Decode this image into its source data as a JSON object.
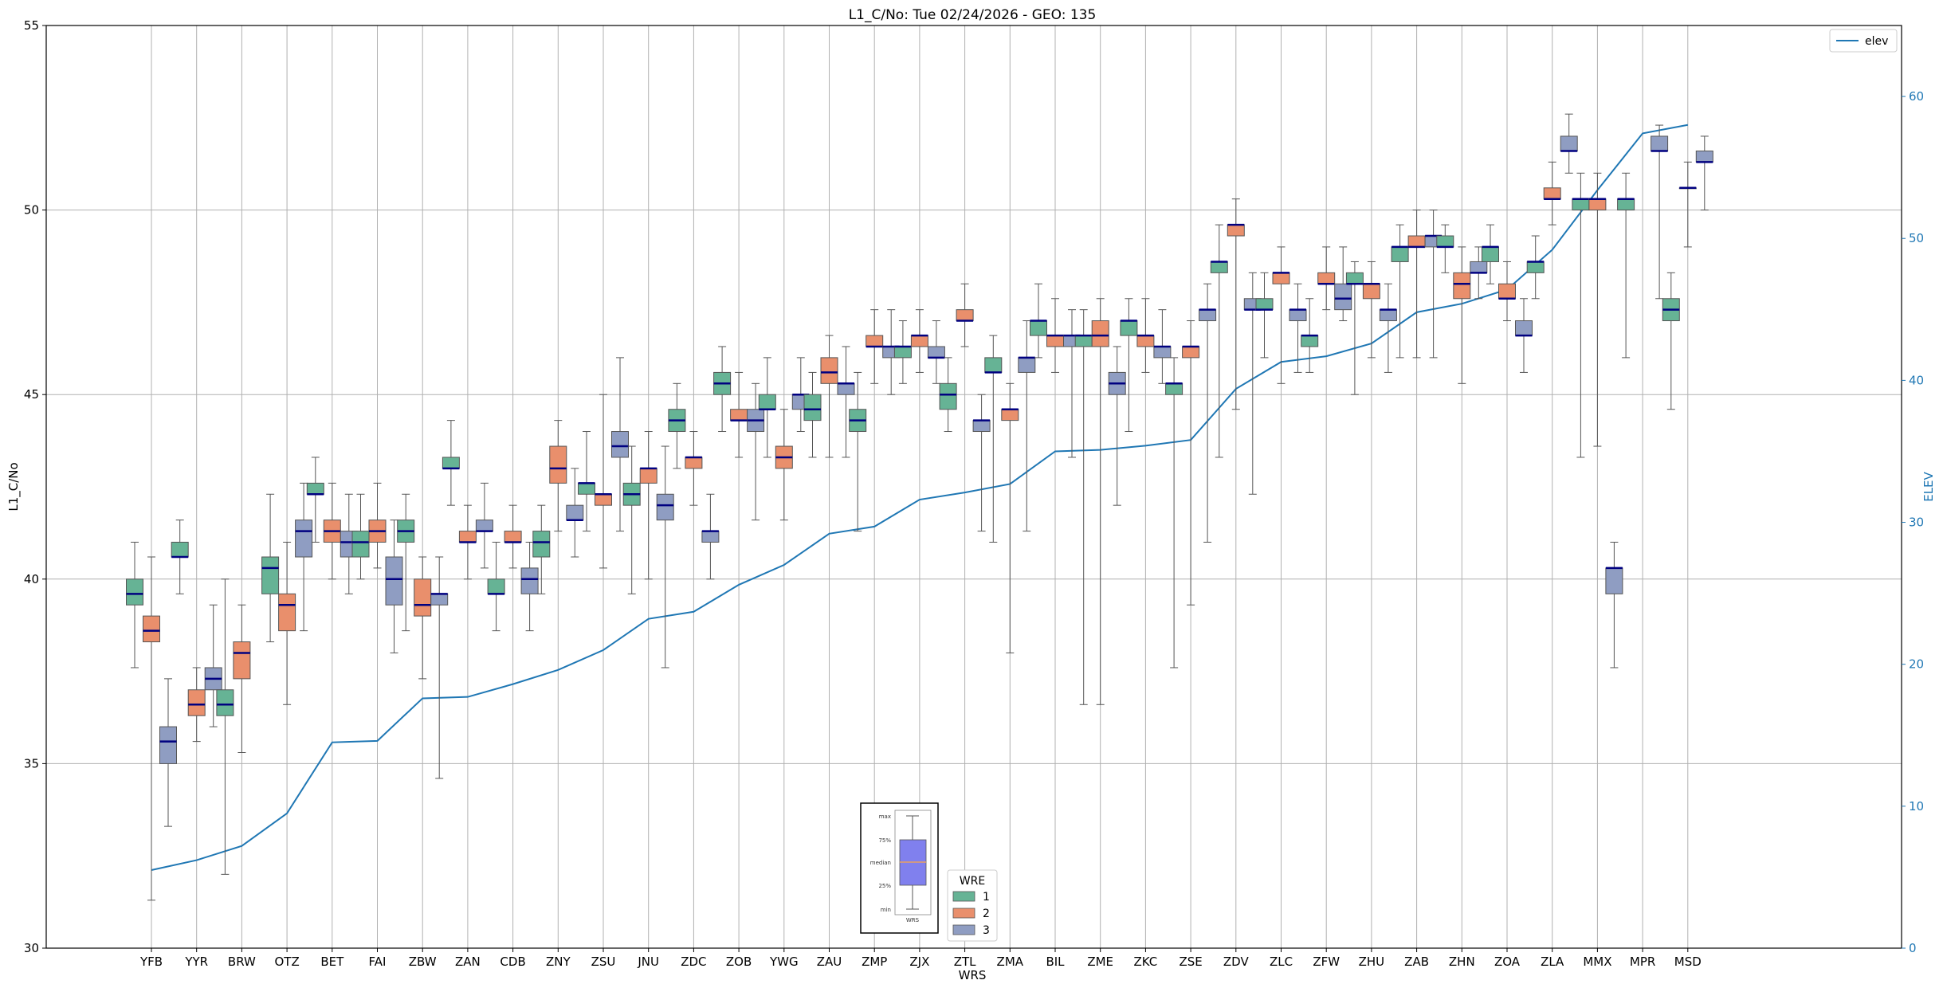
{
  "chart_data": {
    "type": "box",
    "title": "L1_C/No: Tue 02/24/2026 - GEO: 135",
    "xlabel": "WRS",
    "ylabel": "L1_C/No",
    "y2label": "ELEV",
    "ylim": [
      30,
      55
    ],
    "y2lim": [
      0,
      65
    ],
    "yticks": [
      30,
      35,
      40,
      45,
      50,
      55
    ],
    "y2ticks": [
      0,
      10,
      20,
      30,
      40,
      50,
      60
    ],
    "grid": true,
    "categories": [
      "YFB",
      "YYR",
      "BRW",
      "OTZ",
      "BET",
      "FAI",
      "ZBW",
      "ZAN",
      "CDB",
      "ZNY",
      "ZSU",
      "JNU",
      "ZDC",
      "ZOB",
      "YWG",
      "ZAU",
      "ZMP",
      "ZJX",
      "ZTL",
      "ZMA",
      "BIL",
      "ZME",
      "ZKC",
      "ZSE",
      "ZDV",
      "ZLC",
      "ZFW",
      "ZHU",
      "ZAB",
      "ZHN",
      "ZOA",
      "ZLA",
      "MMX",
      "MPR",
      "MSD"
    ],
    "wre_colors": {
      "1": "#66b395",
      "2": "#e98f6c",
      "3": "#8f9dc2"
    },
    "legend": {
      "elev_label": "elev",
      "elev_color": "#1f77b4",
      "wre_title": "WRE",
      "wre_items": [
        {
          "name": "1",
          "color": "#66b395"
        },
        {
          "name": "2",
          "color": "#e98f6c"
        },
        {
          "name": "3",
          "color": "#8f9dc2"
        }
      ]
    },
    "box_key": {
      "labels": [
        "max",
        "75%",
        "median",
        "25%",
        "min"
      ],
      "xlabel": "WRS",
      "fill": "#8080ee",
      "median_color": "#e9a060"
    },
    "elev": [
      5.5,
      6.2,
      7.2,
      9.5,
      14.5,
      14.6,
      17.6,
      17.7,
      18.6,
      19.6,
      21.0,
      23.2,
      23.7,
      25.6,
      27.0,
      29.2,
      29.7,
      31.6,
      32.1,
      32.7,
      35.0,
      35.1,
      35.4,
      35.8,
      39.4,
      41.3,
      41.7,
      42.6,
      44.8,
      45.4,
      46.4,
      49.2,
      53.4,
      57.4,
      58.0
    ],
    "boxes": [
      {
        "cat": "YFB",
        "wre": 1,
        "min": 37.6,
        "q1": 39.3,
        "median": 39.6,
        "q3": 40.0,
        "max": 41.0
      },
      {
        "cat": "YFB",
        "wre": 2,
        "min": 31.3,
        "q1": 38.3,
        "median": 38.6,
        "q3": 39.0,
        "max": 40.6
      },
      {
        "cat": "YFB",
        "wre": 3,
        "min": 33.3,
        "q1": 35.0,
        "median": 35.6,
        "q3": 36.0,
        "max": 37.3
      },
      {
        "cat": "YYR",
        "wre": 1,
        "min": 39.6,
        "q1": 40.6,
        "median": 40.6,
        "q3": 41.0,
        "max": 41.6
      },
      {
        "cat": "YYR",
        "wre": 2,
        "min": 35.6,
        "q1": 36.3,
        "median": 36.6,
        "q3": 37.0,
        "max": 37.6
      },
      {
        "cat": "YYR",
        "wre": 3,
        "min": 36.0,
        "q1": 37.0,
        "median": 37.3,
        "q3": 37.6,
        "max": 39.3
      },
      {
        "cat": "BRW",
        "wre": 1,
        "min": 32.0,
        "q1": 36.3,
        "median": 36.6,
        "q3": 37.0,
        "max": 40.0
      },
      {
        "cat": "BRW",
        "wre": 2,
        "min": 35.3,
        "q1": 37.3,
        "median": 38.0,
        "q3": 38.3,
        "max": 39.3
      },
      {
        "cat": "OTZ",
        "wre": 1,
        "min": 38.3,
        "q1": 39.6,
        "median": 40.3,
        "q3": 40.6,
        "max": 42.3
      },
      {
        "cat": "OTZ",
        "wre": 2,
        "min": 36.6,
        "q1": 38.6,
        "median": 39.3,
        "q3": 39.6,
        "max": 41.0
      },
      {
        "cat": "OTZ",
        "wre": 3,
        "min": 38.6,
        "q1": 40.6,
        "median": 41.3,
        "q3": 41.6,
        "max": 42.6
      },
      {
        "cat": "BET",
        "wre": 1,
        "min": 41.0,
        "q1": 42.3,
        "median": 42.3,
        "q3": 42.6,
        "max": 43.3
      },
      {
        "cat": "BET",
        "wre": 2,
        "min": 40.0,
        "q1": 41.0,
        "median": 41.3,
        "q3": 41.6,
        "max": 42.6
      },
      {
        "cat": "BET",
        "wre": 3,
        "min": 39.6,
        "q1": 40.6,
        "median": 41.0,
        "q3": 41.3,
        "max": 42.3
      },
      {
        "cat": "FAI",
        "wre": 1,
        "min": 40.0,
        "q1": 40.6,
        "median": 41.0,
        "q3": 41.3,
        "max": 42.3
      },
      {
        "cat": "FAI",
        "wre": 2,
        "min": 40.3,
        "q1": 41.0,
        "median": 41.3,
        "q3": 41.6,
        "max": 42.6
      },
      {
        "cat": "FAI",
        "wre": 3,
        "min": 38.0,
        "q1": 39.3,
        "median": 40.0,
        "q3": 40.6,
        "max": 41.6
      },
      {
        "cat": "ZBW",
        "wre": 1,
        "min": 38.6,
        "q1": 41.0,
        "median": 41.3,
        "q3": 41.6,
        "max": 42.3
      },
      {
        "cat": "ZBW",
        "wre": 2,
        "min": 37.3,
        "q1": 39.0,
        "median": 39.3,
        "q3": 40.0,
        "max": 40.6
      },
      {
        "cat": "ZBW",
        "wre": 3,
        "min": 34.6,
        "q1": 39.3,
        "median": 39.6,
        "q3": 39.6,
        "max": 40.6
      },
      {
        "cat": "ZAN",
        "wre": 1,
        "min": 42.0,
        "q1": 43.0,
        "median": 43.0,
        "q3": 43.3,
        "max": 44.3
      },
      {
        "cat": "ZAN",
        "wre": 2,
        "min": 40.0,
        "q1": 41.0,
        "median": 41.0,
        "q3": 41.3,
        "max": 42.0
      },
      {
        "cat": "ZAN",
        "wre": 3,
        "min": 40.3,
        "q1": 41.3,
        "median": 41.3,
        "q3": 41.6,
        "max": 42.6
      },
      {
        "cat": "CDB",
        "wre": 1,
        "min": 38.6,
        "q1": 39.6,
        "median": 39.6,
        "q3": 40.0,
        "max": 41.0
      },
      {
        "cat": "CDB",
        "wre": 2,
        "min": 40.3,
        "q1": 41.0,
        "median": 41.0,
        "q3": 41.3,
        "max": 42.0
      },
      {
        "cat": "CDB",
        "wre": 3,
        "min": 38.6,
        "q1": 39.6,
        "median": 40.0,
        "q3": 40.3,
        "max": 41.0
      },
      {
        "cat": "ZNY",
        "wre": 1,
        "min": 39.6,
        "q1": 40.6,
        "median": 41.0,
        "q3": 41.3,
        "max": 42.0
      },
      {
        "cat": "ZNY",
        "wre": 2,
        "min": 41.3,
        "q1": 42.6,
        "median": 43.0,
        "q3": 43.6,
        "max": 44.3
      },
      {
        "cat": "ZNY",
        "wre": 3,
        "min": 40.6,
        "q1": 41.6,
        "median": 41.6,
        "q3": 42.0,
        "max": 43.0
      },
      {
        "cat": "ZSU",
        "wre": 1,
        "min": 41.3,
        "q1": 42.3,
        "median": 42.6,
        "q3": 42.6,
        "max": 44.0
      },
      {
        "cat": "ZSU",
        "wre": 2,
        "min": 40.3,
        "q1": 42.0,
        "median": 42.3,
        "q3": 42.3,
        "max": 45.0
      },
      {
        "cat": "ZSU",
        "wre": 3,
        "min": 41.3,
        "q1": 43.3,
        "median": 43.6,
        "q3": 44.0,
        "max": 46.0
      },
      {
        "cat": "JNU",
        "wre": 1,
        "min": 39.6,
        "q1": 42.0,
        "median": 42.3,
        "q3": 42.6,
        "max": 43.6
      },
      {
        "cat": "JNU",
        "wre": 2,
        "min": 40.0,
        "q1": 42.6,
        "median": 43.0,
        "q3": 43.0,
        "max": 44.0
      },
      {
        "cat": "JNU",
        "wre": 3,
        "min": 37.6,
        "q1": 41.6,
        "median": 42.0,
        "q3": 42.3,
        "max": 43.6
      },
      {
        "cat": "ZDC",
        "wre": 1,
        "min": 43.0,
        "q1": 44.0,
        "median": 44.3,
        "q3": 44.6,
        "max": 45.3
      },
      {
        "cat": "ZDC",
        "wre": 2,
        "min": 42.0,
        "q1": 43.0,
        "median": 43.3,
        "q3": 43.3,
        "max": 44.0
      },
      {
        "cat": "ZDC",
        "wre": 3,
        "min": 40.0,
        "q1": 41.0,
        "median": 41.3,
        "q3": 41.3,
        "max": 42.3
      },
      {
        "cat": "ZOB",
        "wre": 1,
        "min": 44.0,
        "q1": 45.0,
        "median": 45.3,
        "q3": 45.6,
        "max": 46.3
      },
      {
        "cat": "ZOB",
        "wre": 2,
        "min": 43.3,
        "q1": 44.3,
        "median": 44.3,
        "q3": 44.6,
        "max": 45.6
      },
      {
        "cat": "ZOB",
        "wre": 3,
        "min": 41.6,
        "q1": 44.0,
        "median": 44.3,
        "q3": 44.6,
        "max": 45.3
      },
      {
        "cat": "YWG",
        "wre": 1,
        "min": 43.3,
        "q1": 44.6,
        "median": 44.6,
        "q3": 45.0,
        "max": 46.0
      },
      {
        "cat": "YWG",
        "wre": 2,
        "min": 41.6,
        "q1": 43.0,
        "median": 43.3,
        "q3": 43.6,
        "max": 44.6
      },
      {
        "cat": "YWG",
        "wre": 3,
        "min": 44.0,
        "q1": 44.6,
        "median": 45.0,
        "q3": 45.0,
        "max": 46.0
      },
      {
        "cat": "ZAU",
        "wre": 1,
        "min": 43.3,
        "q1": 44.3,
        "median": 44.6,
        "q3": 45.0,
        "max": 45.6
      },
      {
        "cat": "ZAU",
        "wre": 2,
        "min": 43.3,
        "q1": 45.3,
        "median": 45.6,
        "q3": 46.0,
        "max": 46.6
      },
      {
        "cat": "ZAU",
        "wre": 3,
        "min": 43.3,
        "q1": 45.0,
        "median": 45.3,
        "q3": 45.3,
        "max": 46.3
      },
      {
        "cat": "ZMP",
        "wre": 1,
        "min": 41.3,
        "q1": 44.0,
        "median": 44.3,
        "q3": 44.6,
        "max": 45.6
      },
      {
        "cat": "ZMP",
        "wre": 2,
        "min": 45.3,
        "q1": 46.3,
        "median": 46.3,
        "q3": 46.6,
        "max": 47.3
      },
      {
        "cat": "ZMP",
        "wre": 3,
        "min": 45.0,
        "q1": 46.0,
        "median": 46.3,
        "q3": 46.3,
        "max": 47.3
      },
      {
        "cat": "ZJX",
        "wre": 1,
        "min": 45.3,
        "q1": 46.0,
        "median": 46.3,
        "q3": 46.3,
        "max": 47.0
      },
      {
        "cat": "ZJX",
        "wre": 2,
        "min": 45.6,
        "q1": 46.3,
        "median": 46.6,
        "q3": 46.6,
        "max": 47.3
      },
      {
        "cat": "ZJX",
        "wre": 3,
        "min": 45.3,
        "q1": 46.0,
        "median": 46.0,
        "q3": 46.3,
        "max": 47.0
      },
      {
        "cat": "ZTL",
        "wre": 1,
        "min": 44.0,
        "q1": 44.6,
        "median": 45.0,
        "q3": 45.3,
        "max": 46.0
      },
      {
        "cat": "ZTL",
        "wre": 2,
        "min": 46.3,
        "q1": 47.0,
        "median": 47.0,
        "q3": 47.3,
        "max": 48.0
      },
      {
        "cat": "ZTL",
        "wre": 3,
        "min": 41.3,
        "q1": 44.0,
        "median": 44.3,
        "q3": 44.3,
        "max": 45.0
      },
      {
        "cat": "ZMA",
        "wre": 1,
        "min": 41.0,
        "q1": 45.6,
        "median": 45.6,
        "q3": 46.0,
        "max": 46.6
      },
      {
        "cat": "ZMA",
        "wre": 2,
        "min": 38.0,
        "q1": 44.3,
        "median": 44.6,
        "q3": 44.6,
        "max": 45.3
      },
      {
        "cat": "ZMA",
        "wre": 3,
        "min": 41.3,
        "q1": 45.6,
        "median": 46.0,
        "q3": 46.0,
        "max": 47.0
      },
      {
        "cat": "BIL",
        "wre": 1,
        "min": 46.0,
        "q1": 46.6,
        "median": 47.0,
        "q3": 47.0,
        "max": 48.0
      },
      {
        "cat": "BIL",
        "wre": 2,
        "min": 45.6,
        "q1": 46.3,
        "median": 46.6,
        "q3": 46.6,
        "max": 47.6
      },
      {
        "cat": "BIL",
        "wre": 3,
        "min": 43.3,
        "q1": 46.3,
        "median": 46.6,
        "q3": 46.6,
        "max": 47.3
      },
      {
        "cat": "ZME",
        "wre": 1,
        "min": 36.6,
        "q1": 46.3,
        "median": 46.6,
        "q3": 46.6,
        "max": 47.3
      },
      {
        "cat": "ZME",
        "wre": 2,
        "min": 36.6,
        "q1": 46.3,
        "median": 46.6,
        "q3": 47.0,
        "max": 47.6
      },
      {
        "cat": "ZME",
        "wre": 3,
        "min": 42.0,
        "q1": 45.0,
        "median": 45.3,
        "q3": 45.6,
        "max": 46.3
      },
      {
        "cat": "ZKC",
        "wre": 1,
        "min": 44.0,
        "q1": 46.6,
        "median": 47.0,
        "q3": 47.0,
        "max": 47.6
      },
      {
        "cat": "ZKC",
        "wre": 2,
        "min": 45.6,
        "q1": 46.3,
        "median": 46.6,
        "q3": 46.6,
        "max": 47.6
      },
      {
        "cat": "ZKC",
        "wre": 3,
        "min": 45.3,
        "q1": 46.0,
        "median": 46.3,
        "q3": 46.3,
        "max": 47.3
      },
      {
        "cat": "ZSE",
        "wre": 1,
        "min": 37.6,
        "q1": 45.0,
        "median": 45.3,
        "q3": 45.3,
        "max": 46.0
      },
      {
        "cat": "ZSE",
        "wre": 2,
        "min": 39.3,
        "q1": 46.0,
        "median": 46.3,
        "q3": 46.3,
        "max": 47.0
      },
      {
        "cat": "ZSE",
        "wre": 3,
        "min": 41.0,
        "q1": 47.0,
        "median": 47.3,
        "q3": 47.3,
        "max": 48.0
      },
      {
        "cat": "ZDV",
        "wre": 1,
        "min": 43.3,
        "q1": 48.3,
        "median": 48.6,
        "q3": 48.6,
        "max": 49.6
      },
      {
        "cat": "ZDV",
        "wre": 2,
        "min": 44.6,
        "q1": 49.3,
        "median": 49.6,
        "q3": 49.6,
        "max": 50.3
      },
      {
        "cat": "ZDV",
        "wre": 3,
        "min": 42.3,
        "q1": 47.3,
        "median": 47.3,
        "q3": 47.6,
        "max": 48.3
      },
      {
        "cat": "ZLC",
        "wre": 1,
        "min": 46.0,
        "q1": 47.3,
        "median": 47.3,
        "q3": 47.6,
        "max": 48.3
      },
      {
        "cat": "ZLC",
        "wre": 2,
        "min": 45.3,
        "q1": 48.0,
        "median": 48.3,
        "q3": 48.3,
        "max": 49.0
      },
      {
        "cat": "ZLC",
        "wre": 3,
        "min": 45.6,
        "q1": 47.0,
        "median": 47.3,
        "q3": 47.3,
        "max": 48.0
      },
      {
        "cat": "ZFW",
        "wre": 1,
        "min": 45.6,
        "q1": 46.3,
        "median": 46.6,
        "q3": 46.6,
        "max": 47.6
      },
      {
        "cat": "ZFW",
        "wre": 2,
        "min": 47.3,
        "q1": 48.0,
        "median": 48.0,
        "q3": 48.3,
        "max": 49.0
      },
      {
        "cat": "ZFW",
        "wre": 3,
        "min": 47.0,
        "q1": 47.3,
        "median": 47.6,
        "q3": 48.0,
        "max": 49.0
      },
      {
        "cat": "ZHU",
        "wre": 1,
        "min": 45.0,
        "q1": 48.0,
        "median": 48.0,
        "q3": 48.3,
        "max": 48.6
      },
      {
        "cat": "ZHU",
        "wre": 2,
        "min": 46.0,
        "q1": 47.6,
        "median": 48.0,
        "q3": 48.0,
        "max": 48.6
      },
      {
        "cat": "ZHU",
        "wre": 3,
        "min": 45.6,
        "q1": 47.0,
        "median": 47.3,
        "q3": 47.3,
        "max": 48.0
      },
      {
        "cat": "ZAB",
        "wre": 1,
        "min": 46.0,
        "q1": 48.6,
        "median": 49.0,
        "q3": 49.0,
        "max": 49.6
      },
      {
        "cat": "ZAB",
        "wre": 2,
        "min": 46.0,
        "q1": 49.0,
        "median": 49.0,
        "q3": 49.3,
        "max": 50.0
      },
      {
        "cat": "ZAB",
        "wre": 3,
        "min": 46.0,
        "q1": 49.0,
        "median": 49.3,
        "q3": 49.3,
        "max": 50.0
      },
      {
        "cat": "ZHN",
        "wre": 1,
        "min": 48.3,
        "q1": 49.0,
        "median": 49.0,
        "q3": 49.3,
        "max": 49.6
      },
      {
        "cat": "ZHN",
        "wre": 2,
        "min": 45.3,
        "q1": 47.6,
        "median": 48.0,
        "q3": 48.3,
        "max": 49.0
      },
      {
        "cat": "ZHN",
        "wre": 3,
        "min": 47.6,
        "q1": 48.3,
        "median": 48.3,
        "q3": 48.6,
        "max": 49.0
      },
      {
        "cat": "ZOA",
        "wre": 1,
        "min": 48.0,
        "q1": 48.6,
        "median": 49.0,
        "q3": 49.0,
        "max": 49.6
      },
      {
        "cat": "ZOA",
        "wre": 2,
        "min": 47.0,
        "q1": 47.6,
        "median": 47.6,
        "q3": 48.0,
        "max": 48.6
      },
      {
        "cat": "ZOA",
        "wre": 3,
        "min": 45.6,
        "q1": 46.6,
        "median": 46.6,
        "q3": 47.0,
        "max": 47.6
      },
      {
        "cat": "ZLA",
        "wre": 1,
        "min": 47.6,
        "q1": 48.3,
        "median": 48.6,
        "q3": 48.6,
        "max": 49.3
      },
      {
        "cat": "ZLA",
        "wre": 2,
        "min": 49.6,
        "q1": 50.3,
        "median": 50.3,
        "q3": 50.6,
        "max": 51.3
      },
      {
        "cat": "ZLA",
        "wre": 3,
        "min": 51.0,
        "q1": 51.6,
        "median": 51.6,
        "q3": 52.0,
        "max": 52.6
      },
      {
        "cat": "MMX",
        "wre": 1,
        "min": 43.3,
        "q1": 50.0,
        "median": 50.3,
        "q3": 50.3,
        "max": 51.0
      },
      {
        "cat": "MMX",
        "wre": 2,
        "min": 43.6,
        "q1": 50.0,
        "median": 50.3,
        "q3": 50.3,
        "max": 51.0
      },
      {
        "cat": "MMX",
        "wre": 3,
        "min": 37.6,
        "q1": 39.6,
        "median": 40.3,
        "q3": 40.3,
        "max": 41.0
      },
      {
        "cat": "MPR",
        "wre": 1,
        "min": 46.0,
        "q1": 50.0,
        "median": 50.3,
        "q3": 50.3,
        "max": 51.0
      },
      {
        "cat": "MPR",
        "wre": 3,
        "min": 47.6,
        "q1": 51.6,
        "median": 51.6,
        "q3": 52.0,
        "max": 52.3
      },
      {
        "cat": "MSD",
        "wre": 1,
        "min": 44.6,
        "q1": 47.0,
        "median": 47.3,
        "q3": 47.6,
        "max": 48.3
      },
      {
        "cat": "MSD",
        "wre": 2,
        "min": 49.0,
        "q1": 50.6,
        "median": 50.6,
        "q3": 50.6,
        "max": 51.3
      },
      {
        "cat": "MSD",
        "wre": 3,
        "min": 50.0,
        "q1": 51.3,
        "median": 51.3,
        "q3": 51.6,
        "max": 52.0
      }
    ]
  }
}
